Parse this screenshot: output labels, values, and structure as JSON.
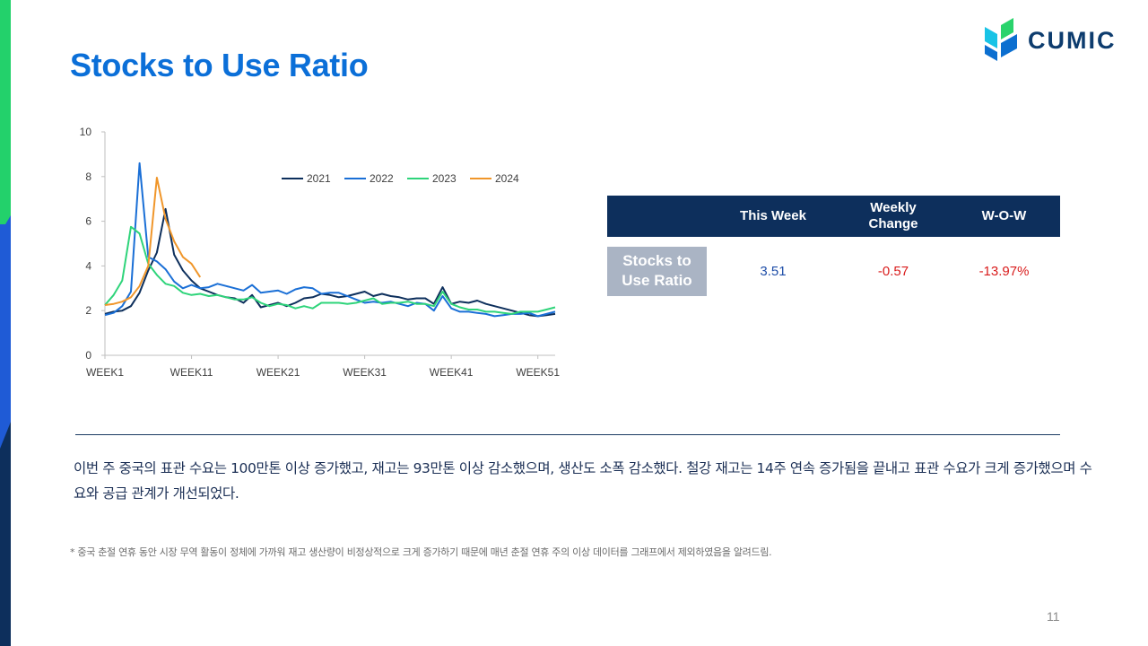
{
  "slide": {
    "title": "Stocks to Use Ratio",
    "page_number": "11"
  },
  "logo": {
    "text": "CUMIC",
    "icon": "cumic-leaf-logo",
    "colors": [
      "#18c3e6",
      "#2ad36c",
      "#0c6fd0"
    ]
  },
  "colors": {
    "title": "#0b6fd8",
    "table_header": "#0d2f5c",
    "row_label_bg": "#aab4c4",
    "positive_value": "#1f4ea8",
    "negative_value": "#d91c1c"
  },
  "table": {
    "headers": [
      "",
      "This Week",
      "Weekly\nChange",
      "W-O-W"
    ],
    "header_this_week": "This Week",
    "header_weekly_change_1": "Weekly",
    "header_weekly_change_2": "Change",
    "header_wow": "W-O-W",
    "row_label_1": "Stocks to",
    "row_label_2": "Use Ratio",
    "this_week": "3.51",
    "weekly_change": "-0.57",
    "wow": "-13.97%"
  },
  "summary": "이번 주 중국의 표관 수요는 100만톤 이상 증가했고, 재고는 93만톤 이상 감소했으며, 생산도 소폭 감소했다. 철강 재고는 14주 연속 증가됨을 끝내고 표관 수요가 크게 증가했으며 수요와 공급 관계가 개선되었다.",
  "footnote": "* 중국 춘절 연휴 동안 시장 무역 활동이 정체에 가까워 재고 생산량이 비정상적으로 크게 증가하기 때문에 매년 춘절 연휴 주의 이상 데이터를 그래프에서 제외하였음을 알려드림.",
  "chart_data": {
    "type": "line",
    "title": "",
    "xlabel": "",
    "ylabel": "",
    "ylim": [
      0,
      10
    ],
    "yticks": [
      "0",
      "2",
      "4",
      "6",
      "8",
      "10"
    ],
    "x_ticks": [
      "WEEK1",
      "WEEK11",
      "WEEK21",
      "WEEK31",
      "WEEK41",
      "WEEK51"
    ],
    "x_tick_weeks": [
      1,
      11,
      21,
      31,
      41,
      51
    ],
    "x_range": [
      1,
      53
    ],
    "grid": false,
    "legend_position": "top-right",
    "series": [
      {
        "name": "2021",
        "color": "#0d2f5c",
        "values": [
          1.85,
          1.95,
          2.0,
          2.2,
          2.8,
          3.8,
          4.6,
          6.55,
          4.5,
          3.8,
          3.35,
          3.0,
          2.85,
          2.7,
          2.6,
          2.55,
          2.35,
          2.7,
          2.15,
          2.25,
          2.35,
          2.2,
          2.35,
          2.55,
          2.6,
          2.75,
          2.7,
          2.6,
          2.65,
          2.75,
          2.85,
          2.65,
          2.75,
          2.65,
          2.6,
          2.5,
          2.55,
          2.55,
          2.3,
          3.05,
          2.3,
          2.4,
          2.35,
          2.45,
          2.3,
          2.2,
          2.1,
          2.0,
          1.9,
          1.8,
          1.75,
          1.8,
          1.85
        ]
      },
      {
        "name": "2022",
        "color": "#1a6fd6",
        "values": [
          1.8,
          1.9,
          2.2,
          2.85,
          8.6,
          4.4,
          4.2,
          3.85,
          3.3,
          3.0,
          3.15,
          3.0,
          3.05,
          3.2,
          3.1,
          3.0,
          2.9,
          3.15,
          2.8,
          2.85,
          2.9,
          2.75,
          2.95,
          3.05,
          3.0,
          2.75,
          2.8,
          2.8,
          2.65,
          2.5,
          2.35,
          2.4,
          2.35,
          2.4,
          2.3,
          2.2,
          2.35,
          2.3,
          2.0,
          2.65,
          2.1,
          1.95,
          1.95,
          1.9,
          1.85,
          1.75,
          1.8,
          1.85,
          1.85,
          1.9,
          1.75,
          1.85,
          1.95
        ]
      },
      {
        "name": "2023",
        "color": "#2ed47a",
        "values": [
          2.25,
          2.7,
          3.35,
          5.75,
          5.45,
          4.1,
          3.6,
          3.2,
          3.1,
          2.8,
          2.7,
          2.75,
          2.65,
          2.7,
          2.6,
          2.5,
          2.5,
          2.6,
          2.35,
          2.2,
          2.3,
          2.25,
          2.1,
          2.2,
          2.1,
          2.35,
          2.35,
          2.35,
          2.3,
          2.35,
          2.45,
          2.55,
          2.3,
          2.35,
          2.35,
          2.4,
          2.3,
          2.3,
          2.2,
          2.85,
          2.3,
          2.15,
          2.05,
          2.05,
          1.95,
          1.95,
          1.9,
          1.85,
          1.95,
          1.95,
          1.95,
          2.05,
          2.15
        ]
      },
      {
        "name": "2024",
        "color": "#f0962a",
        "values": [
          2.25,
          2.3,
          2.4,
          2.6,
          3.1,
          4.0,
          7.95,
          6.1,
          5.1,
          4.4,
          4.1,
          3.5
        ]
      }
    ]
  }
}
